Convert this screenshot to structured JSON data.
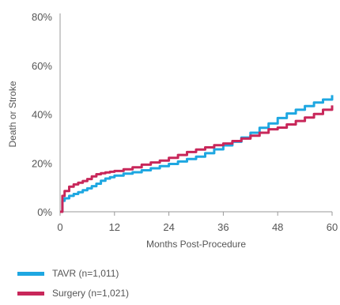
{
  "chart_data": {
    "type": "line",
    "xlabel": "Months Post-Procedure",
    "ylabel": "Death or Stroke",
    "xlim": [
      0,
      60
    ],
    "ylim": [
      0,
      80
    ],
    "x_ticks": [
      0,
      12,
      24,
      36,
      48,
      60
    ],
    "y_ticks": [
      0,
      20,
      40,
      60,
      80
    ],
    "x_tick_labels": [
      "0",
      "12",
      "24",
      "36",
      "48",
      "60"
    ],
    "y_tick_labels": [
      "0%",
      "20%",
      "40%",
      "60%",
      "80%"
    ],
    "grid": false,
    "legend_position": "bottom-left",
    "series": [
      {
        "name": "TAVR (n=1,011)",
        "color": "#1ea7e1",
        "x": [
          0,
          0.5,
          1,
          2,
          3,
          4,
          5,
          6,
          7,
          8,
          9,
          10,
          11,
          12,
          14,
          16,
          18,
          20,
          22,
          24,
          26,
          28,
          30,
          32,
          34,
          36,
          38,
          40,
          42,
          44,
          46,
          48,
          50,
          52,
          54,
          56,
          58,
          60
        ],
        "values": [
          0,
          4.5,
          5.5,
          6.5,
          7.3,
          8.0,
          8.8,
          9.6,
          10.5,
          11.5,
          12.7,
          13.6,
          14.2,
          14.8,
          15.6,
          16.2,
          17.0,
          17.8,
          18.7,
          19.6,
          20.6,
          21.6,
          22.6,
          24.0,
          25.6,
          27.2,
          28.7,
          30.4,
          32.4,
          34.4,
          36.2,
          38.4,
          40.3,
          41.8,
          43.3,
          44.8,
          46.0,
          47.8
        ]
      },
      {
        "name": "Surgery (n=1,021)",
        "color": "#c8275a",
        "x": [
          0,
          0.5,
          1,
          2,
          3,
          4,
          5,
          6,
          7,
          8,
          9,
          10,
          11,
          12,
          14,
          16,
          18,
          20,
          22,
          24,
          26,
          28,
          30,
          32,
          34,
          36,
          38,
          40,
          42,
          44,
          46,
          48,
          50,
          52,
          54,
          56,
          58,
          60
        ],
        "values": [
          0,
          6.5,
          8.5,
          10.3,
          11.2,
          11.9,
          12.6,
          13.4,
          14.5,
          15.4,
          15.8,
          16.1,
          16.4,
          16.7,
          17.4,
          18.2,
          19.3,
          20.2,
          21.0,
          22.1,
          23.3,
          24.5,
          25.5,
          26.4,
          27.3,
          28.0,
          29.0,
          30.0,
          31.2,
          32.4,
          33.8,
          34.5,
          35.8,
          37.2,
          38.6,
          40.1,
          41.8,
          43.6
        ]
      }
    ]
  }
}
